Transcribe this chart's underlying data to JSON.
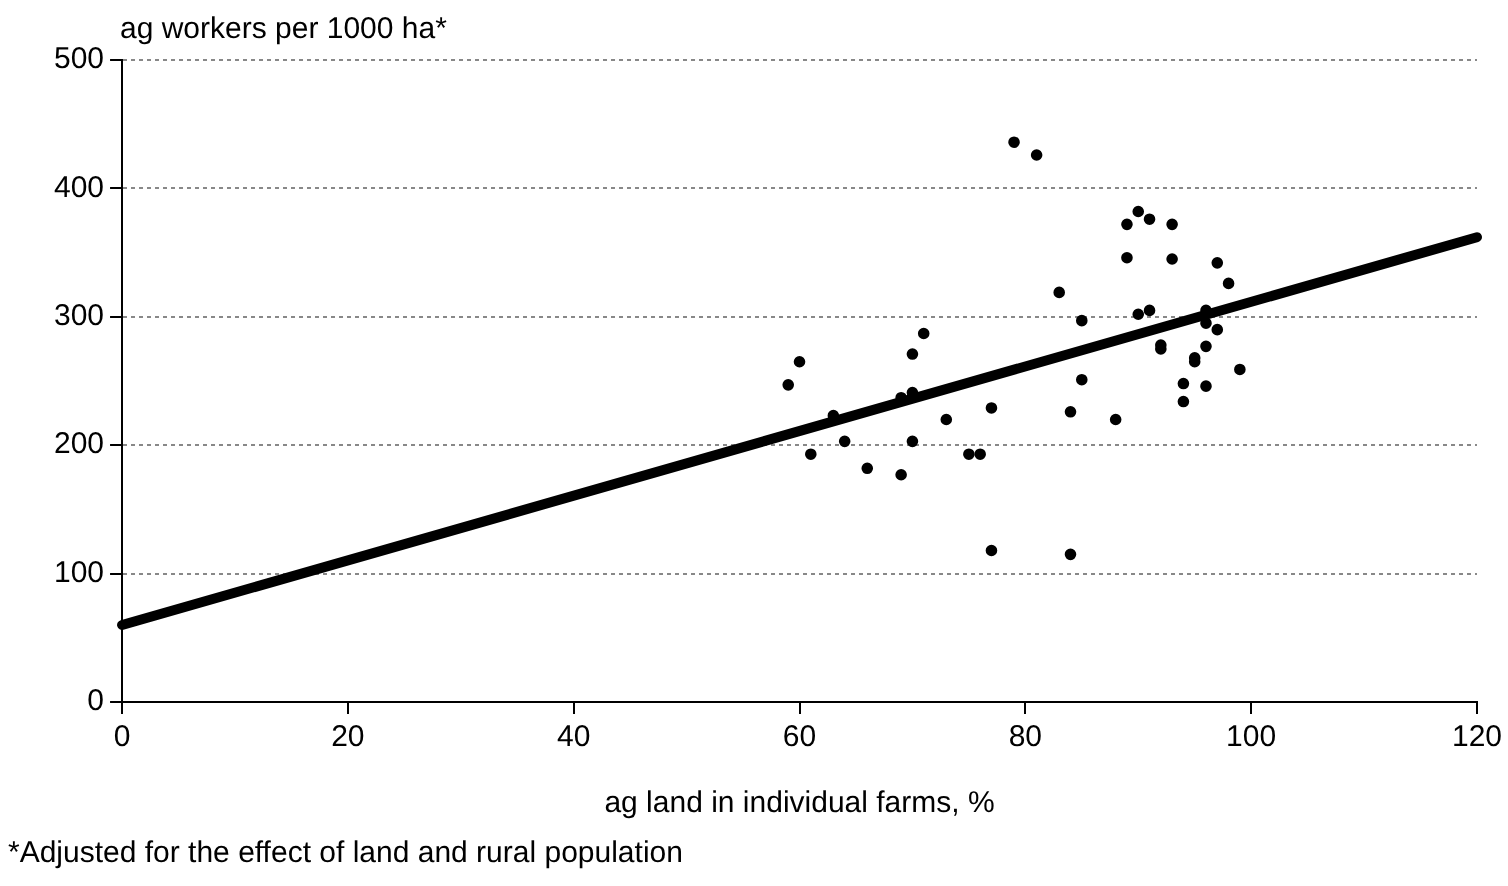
{
  "chart_data": {
    "type": "scatter",
    "ylabel": "ag workers per 1000 ha*",
    "xlabel": "ag land in individual farms, %",
    "annotations": [
      "*Adjusted for the effect of land and rural population"
    ],
    "xlim": [
      0,
      120
    ],
    "xticks": [
      0,
      20,
      40,
      60,
      80,
      100,
      120
    ],
    "ylim": [
      0,
      500
    ],
    "yticks": [
      0,
      100,
      200,
      300,
      400,
      500
    ],
    "grid": "y",
    "legend": false,
    "marker": "circle",
    "series": [
      {
        "type": "scatter",
        "color": "#000000",
        "x": [
          59,
          60,
          61,
          63,
          64,
          66,
          69,
          69,
          70,
          70,
          70,
          71,
          73,
          75,
          76,
          77,
          77,
          79,
          81,
          83,
          84,
          84,
          85,
          85,
          88,
          89,
          89,
          90,
          90,
          91,
          91,
          92,
          92,
          93,
          93,
          94,
          94,
          95,
          95,
          96,
          96,
          96,
          96,
          97,
          97,
          98,
          99
        ],
        "values": [
          247,
          265,
          193,
          223,
          203,
          182,
          177,
          237,
          241,
          203,
          271,
          287,
          220,
          193,
          193,
          229,
          118,
          436,
          426,
          319,
          115,
          226,
          251,
          297,
          220,
          372,
          346,
          302,
          382,
          305,
          376,
          278,
          275,
          372,
          345,
          248,
          234,
          265,
          268,
          305,
          295,
          277,
          246,
          342,
          290,
          326,
          259
        ]
      },
      {
        "type": "line",
        "color": "#000000",
        "x": [
          0,
          120
        ],
        "values": [
          60,
          362
        ],
        "marker": "none"
      }
    ]
  }
}
